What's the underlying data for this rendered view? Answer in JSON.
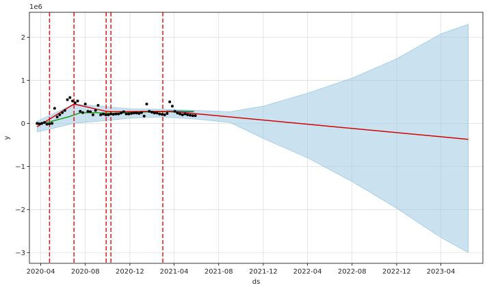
{
  "chart_data": {
    "type": "line",
    "title": "",
    "xlabel": "ds",
    "ylabel": "y",
    "y_offset_label": "1e6",
    "grid": true,
    "x_range": [
      "2020-03-01",
      "2023-07-25"
    ],
    "y_range": [
      -3.25,
      2.58
    ],
    "x_ticks": [
      "2020-04-01",
      "2020-08-01",
      "2020-12-01",
      "2021-04-01",
      "2021-08-01",
      "2021-12-01",
      "2022-04-01",
      "2022-08-01",
      "2022-12-01",
      "2023-04-01"
    ],
    "x_tick_labels": [
      "2020-04",
      "2020-08",
      "2020-12",
      "2021-04",
      "2021-08",
      "2021-12",
      "2022-04",
      "2022-08",
      "2022-12",
      "2023-04"
    ],
    "y_ticks": [
      -3,
      -2,
      -1,
      0,
      1,
      2
    ],
    "y_tick_labels": [
      "−3",
      "−2",
      "−1",
      "0",
      "1",
      "2"
    ],
    "colors": {
      "trend": "#d40000",
      "changepoint": "#ee1111",
      "forecast": "#0072b2",
      "band": "#9ecae1",
      "observed": "#000000",
      "series_green": "#1a9a1a",
      "series_teal": "#2e8b80",
      "grid": "#dddddd"
    },
    "changepoints": [
      "2020-04-25",
      "2020-07-01",
      "2020-09-27",
      "2020-10-10",
      "2021-03-01"
    ],
    "trend": {
      "x": [
        "2020-03-22",
        "2020-04-25",
        "2020-07-01",
        "2020-09-27",
        "2020-10-10",
        "2021-03-01",
        "2021-04-15",
        "2023-06-15"
      ],
      "y": [
        -0.08,
        0.1,
        0.45,
        0.28,
        0.27,
        0.28,
        0.26,
        -0.37
      ]
    },
    "forecast_band": {
      "x": [
        "2020-03-22",
        "2020-07-01",
        "2020-12-01",
        "2021-03-01",
        "2021-06-01",
        "2021-09-01",
        "2021-12-01",
        "2022-04-01",
        "2022-08-01",
        "2022-12-01",
        "2023-04-01",
        "2023-06-15"
      ],
      "upper": [
        0.05,
        0.45,
        0.34,
        0.33,
        0.3,
        0.27,
        0.4,
        0.7,
        1.05,
        1.5,
        2.08,
        2.3
      ],
      "lower": [
        -0.2,
        0.0,
        0.12,
        0.15,
        0.1,
        0.02,
        -0.35,
        -0.8,
        -1.35,
        -1.97,
        -2.65,
        -3.0
      ]
    },
    "series": [
      {
        "x": [
          "2020-03-22",
          "2020-05-01",
          "2020-06-15",
          "2020-07-20",
          "2020-09-01",
          "2020-10-15",
          "2020-12-15",
          "2021-02-15",
          "2021-04-01",
          "2021-05-25"
        ],
        "y": [
          -0.02,
          0.05,
          0.15,
          0.25,
          0.25,
          0.23,
          0.26,
          0.27,
          0.27,
          0.27
        ]
      },
      {
        "x": [
          "2021-03-10",
          "2021-04-10",
          "2021-05-25"
        ],
        "y": [
          0.29,
          0.29,
          0.28
        ]
      }
    ],
    "observed_points": {
      "x": [
        "2020-03-22",
        "2020-03-28",
        "2020-04-04",
        "2020-04-11",
        "2020-04-18",
        "2020-04-25",
        "2020-05-02",
        "2020-05-09",
        "2020-05-16",
        "2020-05-23",
        "2020-05-30",
        "2020-06-06",
        "2020-06-13",
        "2020-06-20",
        "2020-06-27",
        "2020-07-04",
        "2020-07-11",
        "2020-07-18",
        "2020-07-25",
        "2020-08-01",
        "2020-08-08",
        "2020-08-15",
        "2020-08-22",
        "2020-08-29",
        "2020-09-05",
        "2020-09-12",
        "2020-09-19",
        "2020-09-26",
        "2020-10-03",
        "2020-10-10",
        "2020-10-17",
        "2020-10-24",
        "2020-10-31",
        "2020-11-07",
        "2020-11-14",
        "2020-11-21",
        "2020-11-28",
        "2020-12-05",
        "2020-12-12",
        "2020-12-19",
        "2020-12-26",
        "2021-01-02",
        "2021-01-09",
        "2021-01-16",
        "2021-01-23",
        "2021-01-30",
        "2021-02-06",
        "2021-02-13",
        "2021-02-20",
        "2021-02-27",
        "2021-03-06",
        "2021-03-13",
        "2021-03-20",
        "2021-03-27",
        "2021-04-03",
        "2021-04-10",
        "2021-04-17",
        "2021-04-24",
        "2021-05-01",
        "2021-05-08",
        "2021-05-15",
        "2021-05-22",
        "2021-05-29"
      ],
      "y": [
        0.0,
        -0.01,
        0.0,
        0.02,
        -0.02,
        -0.01,
        0.0,
        0.35,
        0.15,
        0.2,
        0.25,
        0.3,
        0.55,
        0.6,
        0.52,
        0.48,
        0.52,
        0.28,
        0.25,
        0.45,
        0.28,
        0.27,
        0.2,
        0.3,
        0.42,
        0.2,
        0.22,
        0.2,
        0.2,
        0.22,
        0.21,
        0.22,
        0.22,
        0.24,
        0.27,
        0.22,
        0.22,
        0.23,
        0.24,
        0.24,
        0.23,
        0.25,
        0.17,
        0.45,
        0.28,
        0.26,
        0.24,
        0.24,
        0.22,
        0.21,
        0.2,
        0.23,
        0.5,
        0.4,
        0.28,
        0.24,
        0.22,
        0.2,
        0.22,
        0.2,
        0.19,
        0.18,
        0.18
      ]
    }
  }
}
